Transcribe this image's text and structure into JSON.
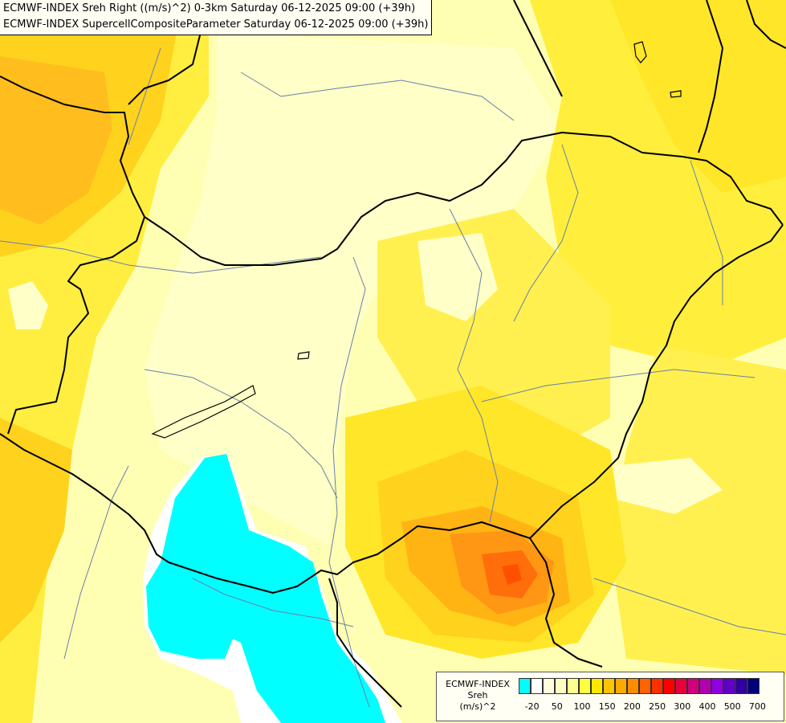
{
  "titles": {
    "line1": "ECMWF-INDEX Sreh Right ((m/s)^2) 0-3km Saturday 06-12-2025 09:00 (+39h)",
    "line2": "ECMWF-INDEX SupercellCompositeParameter Saturday 06-12-2025 09:00 (+39h)"
  },
  "legend": {
    "title_line1": "ECMWF-INDEX",
    "title_line2": "Sreh",
    "title_line3": "(m/s)^2",
    "colors": [
      "#00ffff",
      "#ffffff",
      "#ffffe0",
      "#ffffc0",
      "#ffff90",
      "#ffff40",
      "#ffe800",
      "#ffc400",
      "#ffa800",
      "#ff8c00",
      "#ff6400",
      "#ff3000",
      "#ff0000",
      "#e8003c",
      "#d0007a",
      "#b000b0",
      "#9000e0",
      "#6000c8",
      "#3000a0",
      "#000078"
    ],
    "ticks": [
      "-20",
      "50",
      "100",
      "150",
      "200",
      "250",
      "300",
      "400",
      "500",
      "700"
    ]
  }
}
